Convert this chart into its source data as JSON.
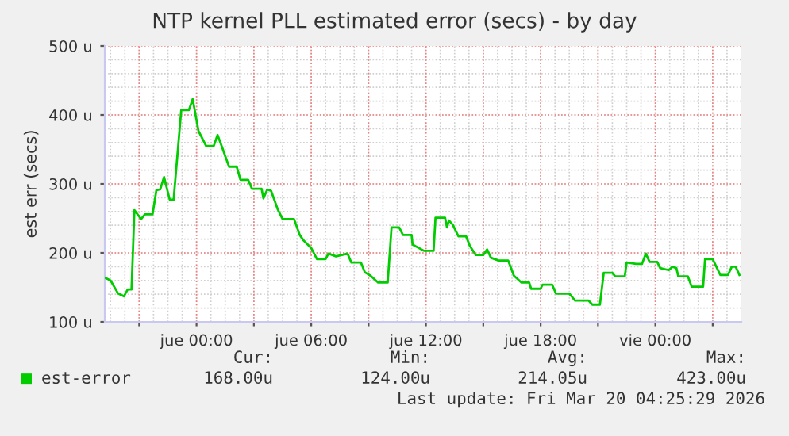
{
  "chart_data": {
    "type": "line",
    "title": "NTP kernel PLL estimated error (secs) - by day",
    "ylabel": "est err (secs)",
    "xlim": [
      "2026-03-18T19:12",
      "2026-03-20T04:30"
    ],
    "ylim": [
      100,
      500
    ],
    "xticks": [
      {
        "value": "2026-03-18T21:00",
        "label": null
      },
      {
        "value": "2026-03-19T00:00",
        "label": "jue 00:00"
      },
      {
        "value": "2026-03-19T03:00",
        "label": null
      },
      {
        "value": "2026-03-19T06:00",
        "label": "jue 06:00"
      },
      {
        "value": "2026-03-19T09:00",
        "label": null
      },
      {
        "value": "2026-03-19T12:00",
        "label": "jue 12:00"
      },
      {
        "value": "2026-03-19T15:00",
        "label": null
      },
      {
        "value": "2026-03-19T18:00",
        "label": "jue 18:00"
      },
      {
        "value": "2026-03-19T21:00",
        "label": null
      },
      {
        "value": "2026-03-20T00:00",
        "label": "vie 00:00"
      },
      {
        "value": "2026-03-20T03:00",
        "label": null
      }
    ],
    "yticks": [
      {
        "value": 100,
        "label": "100 u"
      },
      {
        "value": 200,
        "label": "200 u"
      },
      {
        "value": 300,
        "label": "300 u"
      },
      {
        "value": 400,
        "label": "400 u"
      },
      {
        "value": 500,
        "label": "500 u"
      }
    ],
    "grid": true,
    "legend": "bottom left",
    "marker": "none",
    "line_style": "solid",
    "series": [
      {
        "name": "est-error",
        "color": "#00cc00",
        "x": [
          "2026-03-18T19:12",
          "2026-03-18T19:30",
          "2026-03-18T19:54",
          "2026-03-18T20:12",
          "2026-03-18T20:24",
          "2026-03-18T20:36",
          "2026-03-18T20:45",
          "2026-03-18T21:06",
          "2026-03-18T21:18",
          "2026-03-18T21:42",
          "2026-03-18T21:54",
          "2026-03-18T22:06",
          "2026-03-18T22:18",
          "2026-03-18T22:36",
          "2026-03-18T22:48",
          "2026-03-18T23:12",
          "2026-03-18T23:36",
          "2026-03-18T23:48",
          "2026-03-19T00:06",
          "2026-03-19T00:30",
          "2026-03-19T00:54",
          "2026-03-19T01:06",
          "2026-03-19T01:18",
          "2026-03-19T01:42",
          "2026-03-19T02:06",
          "2026-03-19T02:18",
          "2026-03-19T02:42",
          "2026-03-19T02:54",
          "2026-03-19T03:24",
          "2026-03-19T03:30",
          "2026-03-19T03:42",
          "2026-03-19T03:54",
          "2026-03-19T04:15",
          "2026-03-19T04:30",
          "2026-03-19T05:06",
          "2026-03-19T05:24",
          "2026-03-19T05:36",
          "2026-03-19T06:00",
          "2026-03-19T06:18",
          "2026-03-19T06:45",
          "2026-03-19T06:54",
          "2026-03-19T07:18",
          "2026-03-19T07:54",
          "2026-03-19T08:06",
          "2026-03-19T08:36",
          "2026-03-19T08:48",
          "2026-03-19T09:06",
          "2026-03-19T09:30",
          "2026-03-19T10:00",
          "2026-03-19T10:12",
          "2026-03-19T10:36",
          "2026-03-19T10:48",
          "2026-03-19T11:15",
          "2026-03-19T11:18",
          "2026-03-19T11:54",
          "2026-03-19T12:24",
          "2026-03-19T12:30",
          "2026-03-19T13:00",
          "2026-03-19T13:06",
          "2026-03-19T13:12",
          "2026-03-19T13:24",
          "2026-03-19T13:42",
          "2026-03-19T14:06",
          "2026-03-19T14:18",
          "2026-03-19T14:36",
          "2026-03-19T15:00",
          "2026-03-19T15:12",
          "2026-03-19T15:24",
          "2026-03-19T15:48",
          "2026-03-19T16:18",
          "2026-03-19T16:36",
          "2026-03-19T17:00",
          "2026-03-19T17:24",
          "2026-03-19T17:30",
          "2026-03-19T18:00",
          "2026-03-19T18:06",
          "2026-03-19T18:36",
          "2026-03-19T18:48",
          "2026-03-19T19:30",
          "2026-03-19T19:48",
          "2026-03-19T20:30",
          "2026-03-19T20:42",
          "2026-03-19T21:06",
          "2026-03-19T21:18",
          "2026-03-19T21:45",
          "2026-03-19T21:54",
          "2026-03-19T22:24",
          "2026-03-19T22:30",
          "2026-03-19T23:00",
          "2026-03-19T23:18",
          "2026-03-19T23:30",
          "2026-03-19T23:42",
          "2026-03-20T00:06",
          "2026-03-20T00:15",
          "2026-03-20T00:42",
          "2026-03-20T00:54",
          "2026-03-20T01:06",
          "2026-03-20T01:12",
          "2026-03-20T01:42",
          "2026-03-20T01:54",
          "2026-03-20T02:30",
          "2026-03-20T02:36",
          "2026-03-20T03:00",
          "2026-03-20T03:24",
          "2026-03-20T03:48",
          "2026-03-20T04:00",
          "2026-03-20T04:12",
          "2026-03-20T04:24"
        ],
        "values": [
          164,
          160,
          141,
          137,
          147,
          147,
          262,
          249,
          256,
          256,
          291,
          292,
          310,
          277,
          277,
          407,
          407,
          423,
          377,
          355,
          355,
          371,
          356,
          325,
          325,
          306,
          306,
          293,
          293,
          279,
          292,
          290,
          263,
          249,
          249,
          226,
          218,
          207,
          191,
          191,
          199,
          195,
          199,
          186,
          186,
          172,
          167,
          157,
          157,
          237,
          237,
          226,
          226,
          212,
          203,
          203,
          251,
          251,
          237,
          247,
          241,
          224,
          224,
          210,
          197,
          197,
          205,
          193,
          189,
          189,
          167,
          157,
          157,
          148,
          148,
          154,
          154,
          141,
          141,
          131,
          131,
          125,
          125,
          171,
          171,
          166,
          166,
          186,
          184,
          184,
          199,
          187,
          187,
          178,
          175,
          180,
          178,
          166,
          166,
          151,
          151,
          191,
          191,
          168,
          168,
          180,
          180,
          168
        ]
      }
    ],
    "annotations": [
      "Cur:",
      "168.00u",
      "Min:",
      "124.00u",
      "Avg:",
      "214.05u",
      "Max:",
      "423.00u",
      "Last update: Fri Mar 20 04:25:29 2026"
    ]
  }
}
